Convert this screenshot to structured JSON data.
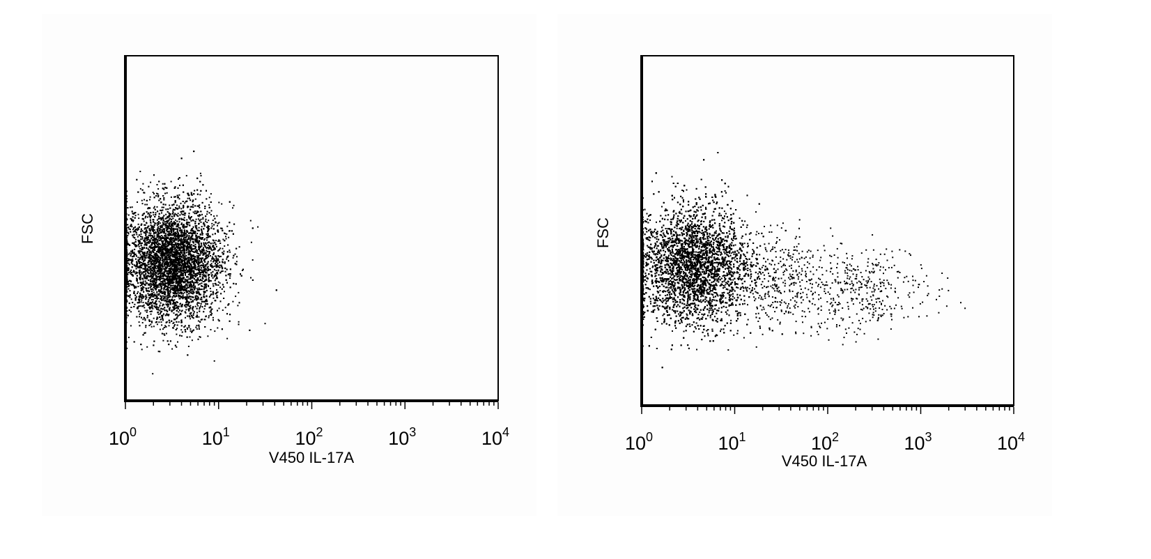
{
  "chart_data": [
    {
      "type": "scatter",
      "xlabel": "V450 IL-17A",
      "ylabel": "FSC",
      "xscale": "log",
      "xlim": [
        1,
        10000
      ],
      "ylim": [
        0,
        1
      ],
      "x_tick_labels": [
        {
          "base": "10",
          "exp": "0"
        },
        {
          "base": "10",
          "exp": "1"
        },
        {
          "base": "10",
          "exp": "2"
        },
        {
          "base": "10",
          "exp": "3"
        },
        {
          "base": "10",
          "exp": "4"
        }
      ],
      "y_ticks": "none",
      "grid": false,
      "point_color": "#000000",
      "populations": [
        {
          "log10_x_center": 0.5,
          "log10_x_sd": 0.26,
          "y_center": 0.4,
          "y_sd": 0.085,
          "count": 9000
        },
        {
          "log10_x_center": 0.9,
          "log10_x_sd": 0.25,
          "y_center": 0.4,
          "y_sd": 0.1,
          "count": 60
        }
      ]
    },
    {
      "type": "scatter",
      "xlabel": "V450 IL-17A",
      "ylabel": "FSC",
      "xscale": "log",
      "xlim": [
        1,
        10000
      ],
      "ylim": [
        0,
        1
      ],
      "x_tick_labels": [
        {
          "base": "10",
          "exp": "0"
        },
        {
          "base": "10",
          "exp": "1"
        },
        {
          "base": "10",
          "exp": "2"
        },
        {
          "base": "10",
          "exp": "3"
        },
        {
          "base": "10",
          "exp": "4"
        }
      ],
      "y_ticks": "none",
      "grid": false,
      "point_color": "#000000",
      "populations": [
        {
          "log10_x_center": 0.55,
          "log10_x_sd": 0.3,
          "y_center": 0.4,
          "y_sd": 0.085,
          "count": 9500
        },
        {
          "log10_x_center": 1.4,
          "log10_x_sd": 0.25,
          "y_center": 0.36,
          "y_sd": 0.07,
          "count": 350
        },
        {
          "log10_x_center": 2.3,
          "log10_x_sd": 0.4,
          "y_center": 0.33,
          "y_sd": 0.06,
          "count": 450
        }
      ]
    }
  ]
}
